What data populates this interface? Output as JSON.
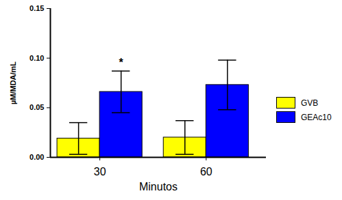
{
  "chart_data": {
    "type": "bar",
    "x_label": "Minutos",
    "y_label": "µM/MDA/mL",
    "categories": [
      "30",
      "60"
    ],
    "series": [
      {
        "name": "GVB",
        "color": "#ffff00",
        "values": [
          0.019,
          0.02
        ],
        "errors": [
          0.016,
          0.017
        ]
      },
      {
        "name": "GEAc10",
        "color": "#0000ff",
        "values": [
          0.066,
          0.073
        ],
        "errors": [
          0.021,
          0.025
        ]
      }
    ],
    "ylim": [
      0,
      0.15
    ],
    "yticks": [
      {
        "value": 0,
        "label": "0.00"
      },
      {
        "value": 0.05,
        "label": "0.05"
      },
      {
        "value": 0.1,
        "label": "0.10"
      },
      {
        "value": 0.15,
        "label": "0.15"
      }
    ],
    "legend": "right",
    "annotations": [
      {
        "text": "*",
        "category": "30",
        "series": "GEAc10"
      }
    ]
  }
}
